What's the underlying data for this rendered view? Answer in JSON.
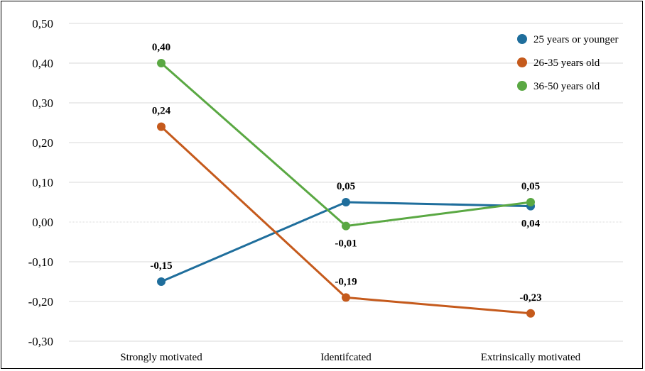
{
  "chart_data": {
    "type": "line",
    "title": "",
    "xlabel": "",
    "ylabel": "",
    "categories": [
      "Strongly motivated",
      "Identifcated",
      "Extrinsically motivated"
    ],
    "ylim": [
      -0.3,
      0.5
    ],
    "yticks": [
      0.5,
      0.4,
      0.3,
      0.2,
      0.1,
      0.0,
      -0.1,
      -0.2,
      -0.3
    ],
    "ytick_labels": [
      "0,50",
      "0,40",
      "0,30",
      "0,20",
      "0,10",
      "0,00",
      "-0,10",
      "-0,20",
      "-0,30"
    ],
    "grid": true,
    "legend_position": "top-right",
    "series": [
      {
        "name": "25 years or younger",
        "color": "#1f6e9c",
        "values": [
          -0.15,
          0.05,
          0.04
        ],
        "labels": [
          "-0,15",
          "0,05",
          "0,04"
        ],
        "label_positions": [
          "above",
          "above",
          "below"
        ]
      },
      {
        "name": "26-35 years old",
        "color": "#c55a1c",
        "values": [
          0.24,
          -0.19,
          -0.23
        ],
        "labels": [
          "0,24",
          "-0,19",
          "-0,23"
        ],
        "label_positions": [
          "above",
          "above",
          "above"
        ]
      },
      {
        "name": "36-50 years old",
        "color": "#5aa843",
        "values": [
          0.4,
          -0.01,
          0.05
        ],
        "labels": [
          "0,40",
          "-0,01",
          "0,05"
        ],
        "label_positions": [
          "above",
          "below",
          "above"
        ]
      }
    ]
  }
}
